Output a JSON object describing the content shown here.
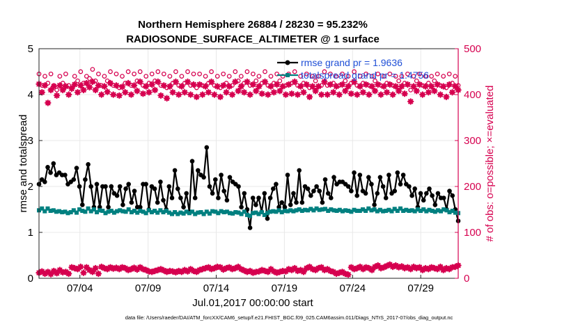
{
  "colors": {
    "rmse": "#000000",
    "spread": "#008080",
    "obs": "#d6004f",
    "legend_text": "#1f4fd6"
  },
  "chart_data": {
    "type": "line",
    "title_line1": "Northern Hemisphere 26884 / 28230 = 95.232%",
    "title_line2": "RADIOSONDE_SURFACE_ALTIMETER @ 1 surface",
    "xlabel": "Jul.01,2017 00:00:00 start",
    "ylabel_left": "rmse and totalspread",
    "ylabel_right": "# of obs: o=possible; ×=evaluated",
    "xlim": [
      1,
      31.75
    ],
    "ylim_left": [
      0,
      5
    ],
    "ylim_right": [
      0,
      500
    ],
    "yticks_left": [
      0,
      1,
      2,
      3,
      4,
      5
    ],
    "yticks_right": [
      0,
      100,
      200,
      300,
      400,
      500
    ],
    "xticks": [
      {
        "x": 4,
        "label": "07/04"
      },
      {
        "x": 9,
        "label": "07/09"
      },
      {
        "x": 14,
        "label": "07/14"
      },
      {
        "x": 19,
        "label": "07/19"
      },
      {
        "x": 24,
        "label": "07/24"
      },
      {
        "x": 29,
        "label": "07/29"
      }
    ],
    "legend": {
      "rmse": "rmse grand pr = 1.9636",
      "spread": "totalspread grand pr = 1.4756"
    },
    "series": [
      {
        "name": "rmse",
        "axis": "left",
        "values": [
          2.05,
          2.15,
          2.1,
          2.42,
          2.3,
          2.5,
          2.25,
          2.3,
          2.25,
          2.25,
          2.05,
          2.1,
          2.15,
          2.4,
          2.0,
          1.6,
          2.15,
          2.48,
          2.0,
          1.55,
          2.05,
          1.55,
          2.0,
          2.0,
          1.55,
          2.0,
          1.85,
          1.8,
          2.0,
          1.6,
          1.95,
          2.05,
          1.65,
          1.9,
          1.55,
          1.55,
          2.05,
          2.05,
          1.5,
          2.0,
          1.95,
          1.65,
          2.1,
          1.7,
          1.5,
          2.0,
          1.75,
          2.35,
          1.95,
          1.75,
          1.55,
          1.85,
          1.45,
          2.55,
          1.75,
          2.35,
          2.25,
          2.2,
          2.85,
          2.0,
          1.85,
          2.15,
          1.75,
          2.25,
          1.9,
          1.7,
          2.2,
          2.1,
          2.05,
          2.0,
          1.55,
          1.85,
          1.5,
          1.1,
          1.75,
          1.6,
          1.75,
          1.45,
          1.85,
          1.3,
          1.75,
          1.95,
          2.05,
          1.55,
          1.65,
          1.55,
          2.25,
          1.6,
          1.85,
          1.65,
          2.35,
          1.65,
          2.0,
          1.95,
          1.8,
          1.9,
          2.0,
          1.9,
          1.65,
          2.15,
          1.85,
          1.75,
          2.2,
          2.05,
          2.1,
          2.1,
          2.05,
          2.0,
          1.9,
          2.3,
          1.8,
          2.25,
          1.9,
          1.85,
          2.2,
          2.05,
          1.6,
          1.85,
          2.2,
          2.0,
          1.75,
          2.25,
          1.85,
          1.9,
          2.3,
          2.05,
          2.25,
          2.05,
          2.0,
          1.8,
          1.95,
          1.55,
          1.85,
          1.7,
          1.85,
          1.95,
          1.8,
          1.6,
          1.85,
          1.75,
          1.75,
          1.5,
          1.9,
          1.8,
          1.5,
          1.25
        ]
      },
      {
        "name": "totalspread",
        "axis": "left",
        "values": [
          1.48,
          1.52,
          1.46,
          1.52,
          1.47,
          1.48,
          1.45,
          1.46,
          1.44,
          1.45,
          1.42,
          1.44,
          1.48,
          1.43,
          1.5,
          1.47,
          1.45,
          1.52,
          1.46,
          1.5,
          1.44,
          1.48,
          1.47,
          1.42,
          1.45,
          1.47,
          1.43,
          1.46,
          1.48,
          1.46,
          1.45,
          1.5,
          1.44,
          1.47,
          1.43,
          1.47,
          1.45,
          1.42,
          1.48,
          1.44,
          1.47,
          1.43,
          1.48,
          1.44,
          1.47,
          1.43,
          1.4,
          1.44,
          1.4,
          1.43,
          1.41,
          1.45,
          1.42,
          1.45,
          1.4,
          1.43,
          1.44,
          1.4,
          1.45,
          1.41,
          1.46,
          1.45,
          1.42,
          1.46,
          1.44,
          1.45,
          1.42,
          1.41,
          1.44,
          1.43,
          1.4,
          1.45,
          1.38,
          1.36,
          1.42,
          1.43,
          1.4,
          1.44,
          1.38,
          1.42,
          1.45,
          1.46,
          1.45,
          1.48,
          1.44,
          1.47,
          1.46,
          1.48,
          1.46,
          1.48,
          1.5,
          1.47,
          1.49,
          1.48,
          1.51,
          1.48,
          1.52,
          1.49,
          1.5,
          1.51,
          1.47,
          1.5,
          1.48,
          1.47,
          1.49,
          1.46,
          1.48,
          1.47,
          1.45,
          1.49,
          1.47,
          1.47,
          1.5,
          1.47,
          1.52,
          1.48,
          1.5,
          1.46,
          1.49,
          1.46,
          1.47,
          1.49,
          1.46,
          1.51,
          1.47,
          1.52,
          1.47,
          1.49,
          1.47,
          1.48,
          1.46,
          1.5,
          1.47,
          1.5,
          1.46,
          1.49,
          1.47,
          1.45,
          1.48,
          1.46,
          1.5,
          1.48,
          1.44,
          1.47,
          1.43,
          1.42
        ]
      },
      {
        "name": "obs possible",
        "axis": "right",
        "values": [
          445,
          420,
          440,
          425,
          445,
          420,
          410,
          440,
          425,
          445,
          420,
          415,
          440,
          430,
          450,
          425,
          440,
          435,
          455,
          430,
          445,
          420,
          440,
          430,
          450,
          420,
          445,
          415,
          440,
          425,
          450,
          420,
          445,
          430,
          450,
          420,
          440,
          425,
          445,
          430,
          450,
          420,
          445,
          415,
          440,
          425,
          450,
          420,
          440,
          425,
          450,
          420,
          445,
          415,
          445,
          420,
          440,
          425,
          450,
          420,
          440,
          415,
          445,
          425,
          440,
          420,
          450,
          430,
          440,
          425,
          450,
          420,
          445,
          430,
          440,
          425,
          450,
          420,
          440,
          425,
          445,
          430,
          440,
          420,
          445,
          425,
          450,
          420,
          440,
          425,
          445,
          415,
          440,
          430,
          440,
          420,
          450,
          420,
          445,
          425,
          440,
          420,
          445,
          430,
          440,
          425,
          450,
          420,
          440,
          425,
          445,
          420,
          440,
          430,
          445,
          420,
          440,
          425,
          445,
          420,
          440,
          430,
          440,
          425,
          445,
          410,
          440,
          430,
          445,
          420,
          440,
          425,
          440,
          430,
          445,
          420,
          440,
          415,
          445,
          425,
          440,
          420
        ]
      },
      {
        "name": "obs evaluated",
        "axis": "right",
        "values": [
          423,
          405,
          420,
          382,
          410,
          418,
          398,
          420,
          410,
          418,
          400,
          413,
          422,
          405,
          420,
          410,
          425,
          416,
          428,
          410,
          420,
          400,
          418,
          406,
          425,
          400,
          420,
          398,
          417,
          405,
          425,
          400,
          420,
          408,
          428,
          402,
          418,
          405,
          422,
          410,
          428,
          398,
          420,
          392,
          418,
          405,
          428,
          400,
          418,
          405,
          428,
          400,
          422,
          395,
          422,
          400,
          418,
          405,
          428,
          400,
          418,
          395,
          420,
          405,
          418,
          400,
          428,
          408,
          418,
          405,
          428,
          400,
          422,
          408,
          418,
          402,
          428,
          400,
          418,
          405,
          422,
          408,
          418,
          400,
          422,
          402,
          428,
          400,
          418,
          405,
          422,
          395,
          418,
          408,
          418,
          400,
          428,
          400,
          422,
          405,
          418,
          400,
          422,
          408,
          418,
          402,
          428,
          400,
          418,
          405,
          422,
          400,
          418,
          408,
          422,
          400,
          418,
          405,
          422,
          400,
          418,
          408,
          418,
          402,
          422,
          385,
          418,
          408,
          422,
          400,
          418,
          405,
          418,
          408,
          422,
          400,
          418,
          395,
          422,
          405,
          418,
          410
        ]
      },
      {
        "name": "obs bottom possible",
        "axis": "right",
        "values": [
          12,
          15,
          10,
          14,
          9,
          16,
          11,
          18,
          13,
          14,
          10,
          24,
          22,
          20,
          25,
          12,
          24,
          18,
          14,
          22,
          10,
          25,
          22,
          20,
          24,
          21,
          23,
          20,
          24,
          22,
          18,
          20,
          23,
          19,
          24,
          20,
          18,
          15,
          14,
          16,
          18,
          20,
          17,
          14,
          16,
          15,
          13,
          16,
          14,
          18,
          15,
          20,
          16,
          14,
          18,
          20,
          22,
          24,
          20,
          22,
          25,
          24,
          19,
          22,
          24,
          20,
          22,
          25,
          20,
          17,
          14,
          16,
          12,
          14,
          15,
          18,
          16,
          14,
          20,
          15,
          12,
          14,
          16,
          15,
          20,
          18,
          22,
          16,
          18,
          14,
          22,
          25,
          20,
          18,
          22,
          24,
          18,
          20,
          16,
          14,
          10,
          12,
          14,
          10,
          8,
          24,
          20,
          22,
          25,
          20,
          24,
          22,
          18,
          25,
          28,
          22,
          24,
          27,
          30,
          25,
          28,
          24,
          26,
          22,
          24,
          20,
          25,
          22,
          24,
          18,
          22,
          20,
          24,
          22,
          20,
          25,
          18,
          22,
          20,
          24,
          25,
          28
        ]
      },
      {
        "name": "obs bottom evaluated",
        "axis": "right",
        "values": [
          12,
          15,
          10,
          14,
          9,
          16,
          11,
          18,
          13,
          14,
          10,
          24,
          22,
          20,
          25,
          12,
          24,
          18,
          14,
          22,
          10,
          25,
          22,
          20,
          24,
          21,
          23,
          20,
          24,
          22,
          18,
          20,
          23,
          19,
          24,
          20,
          18,
          15,
          14,
          16,
          18,
          20,
          17,
          14,
          16,
          15,
          13,
          16,
          14,
          18,
          15,
          20,
          16,
          14,
          18,
          20,
          22,
          24,
          20,
          22,
          25,
          24,
          19,
          22,
          24,
          20,
          22,
          25,
          20,
          17,
          14,
          16,
          12,
          14,
          15,
          18,
          16,
          14,
          20,
          15,
          12,
          14,
          16,
          15,
          20,
          18,
          22,
          16,
          18,
          14,
          22,
          25,
          20,
          18,
          22,
          24,
          18,
          20,
          16,
          14,
          10,
          12,
          14,
          10,
          8,
          24,
          20,
          22,
          25,
          20,
          24,
          22,
          18,
          25,
          28,
          22,
          24,
          27,
          30,
          25,
          28,
          24,
          26,
          22,
          24,
          20,
          25,
          22,
          24,
          18,
          22,
          20,
          24,
          22,
          20,
          25,
          18,
          22,
          20,
          24,
          25,
          28
        ]
      }
    ]
  },
  "footer": "data file: /Users/raeder/DAI/ATM_forcXX/CAM6_setup/f.e21.FHIST_BGC.f09_025.CAM6assim.011/Diags_NTrS_2017-07/obs_diag_output.nc"
}
